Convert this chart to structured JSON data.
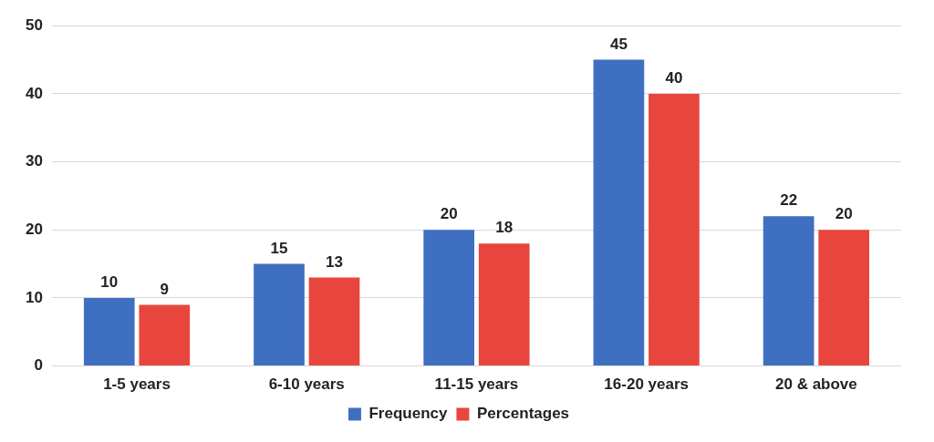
{
  "chart_data": {
    "type": "bar",
    "categories": [
      "1-5 years",
      "6-10 years",
      "11-15 years",
      "16-20 years",
      "20 & above"
    ],
    "series": [
      {
        "name": "Frequency",
        "color": "#3f6fc0",
        "values": [
          10,
          15,
          20,
          45,
          22
        ]
      },
      {
        "name": "Percentages",
        "color": "#e8463c",
        "values": [
          9,
          13,
          18,
          40,
          20
        ]
      }
    ],
    "ylim": [
      0,
      50
    ],
    "yticks": [
      0,
      10,
      20,
      30,
      40,
      50
    ],
    "grid": "y",
    "legend": "bottom",
    "data_labels": true
  }
}
